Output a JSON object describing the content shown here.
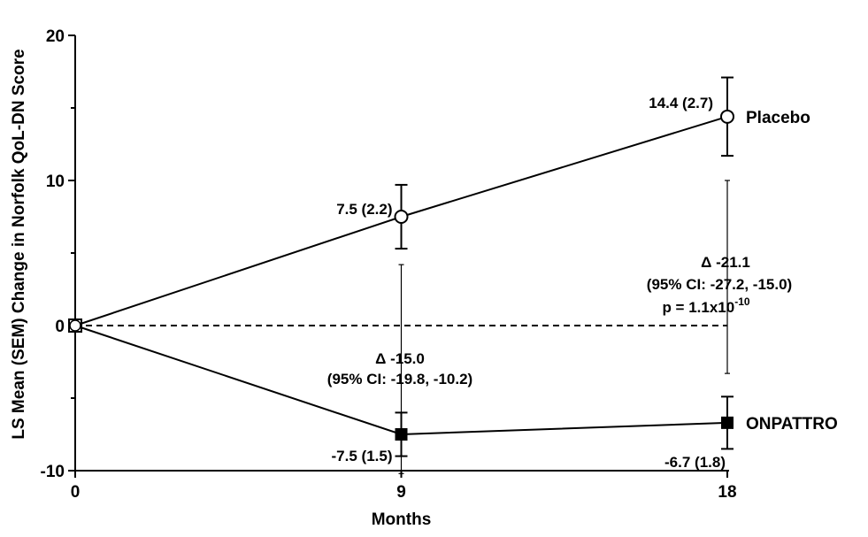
{
  "chart_data": {
    "type": "line",
    "title": "",
    "xlabel": "Months",
    "ylabel": "LS Mean (SEM) Change in Norfolk QoL-DN Score",
    "x": [
      0,
      9,
      18
    ],
    "x_ticks": [
      "0",
      "9",
      "18"
    ],
    "xlim": [
      0,
      18
    ],
    "ylim": [
      -10,
      20
    ],
    "y_ticks": [
      "-10",
      "0",
      "10",
      "20"
    ],
    "grid": false,
    "reference_line": {
      "y": 0,
      "style": "dashed"
    },
    "series": [
      {
        "name": "Placebo",
        "marker": "open-circle",
        "color": "#000000",
        "values": [
          0,
          7.5,
          14.4
        ],
        "sem": [
          0,
          2.2,
          2.7
        ],
        "point_labels": [
          "",
          "7.5 (2.2)",
          "14.4 (2.7)"
        ]
      },
      {
        "name": "ONPATTRO",
        "marker": "filled-square",
        "color": "#000000",
        "values": [
          0,
          -7.5,
          -6.7
        ],
        "sem": [
          0,
          1.5,
          1.8
        ],
        "point_labels": [
          "",
          "-7.5 (1.5)",
          "-6.7 (1.8)"
        ]
      }
    ],
    "differences": [
      {
        "x": 9,
        "ci": [
          -10.2,
          4.2
        ],
        "label_line1": "Δ -15.0",
        "label_line2": "(95% CI: -19.8, -10.2)"
      },
      {
        "x": 18,
        "ci": [
          -3.3,
          10.0
        ],
        "label_line1": "Δ -21.1",
        "label_line2": "(95% CI: -27.2, -15.0)",
        "p_prefix": "p = 1.1x10",
        "p_exponent": "-10"
      }
    ]
  }
}
